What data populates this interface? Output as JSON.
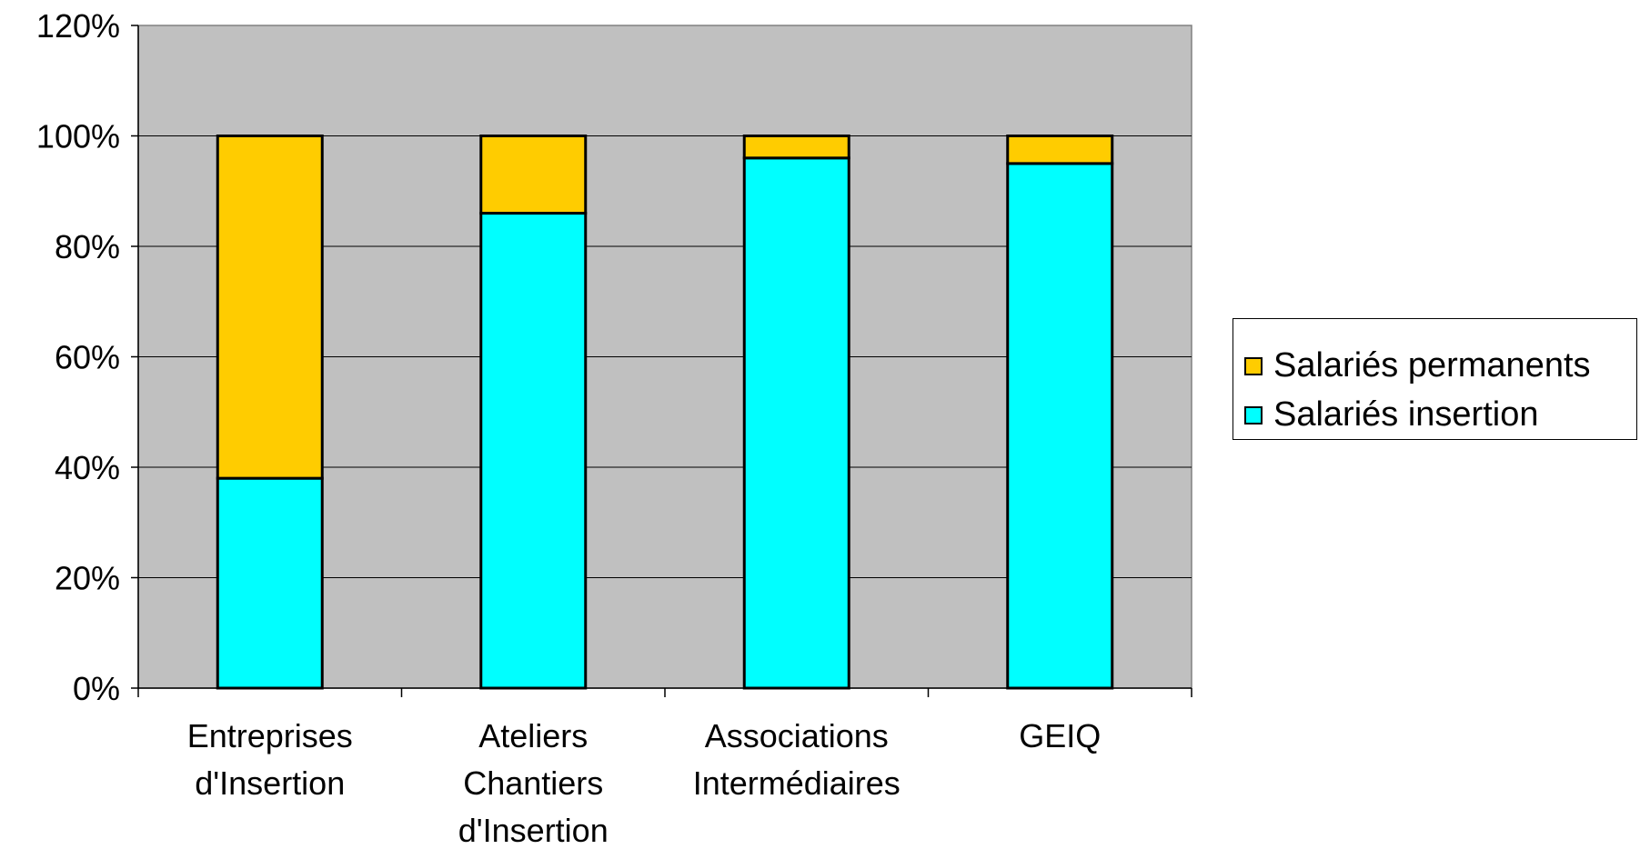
{
  "chart_data": {
    "type": "bar",
    "stacked": true,
    "categories": [
      [
        "Entreprises",
        "d'Insertion"
      ],
      [
        "Ateliers",
        "Chantiers",
        "d'Insertion"
      ],
      [
        "Associations",
        "Intermédiaires"
      ],
      [
        "GEIQ"
      ]
    ],
    "series": [
      {
        "name": "Salariés insertion",
        "color": "#00FFFF",
        "values": [
          38,
          86,
          96,
          95
        ]
      },
      {
        "name": "Salariés permanents",
        "color": "#FFCC00",
        "values": [
          62,
          14,
          4,
          5
        ]
      }
    ],
    "ylim": [
      0,
      120
    ],
    "yticks": [
      "0%",
      "20%",
      "40%",
      "60%",
      "80%",
      "100%",
      "120%"
    ],
    "plot_background": "#C0C0C0",
    "grid": true,
    "legend_position": "right"
  },
  "legend": {
    "items": [
      {
        "label": "Salariés permanents",
        "color": "#FFCC00"
      },
      {
        "label": "Salariés insertion",
        "color": "#00FFFF"
      }
    ]
  }
}
